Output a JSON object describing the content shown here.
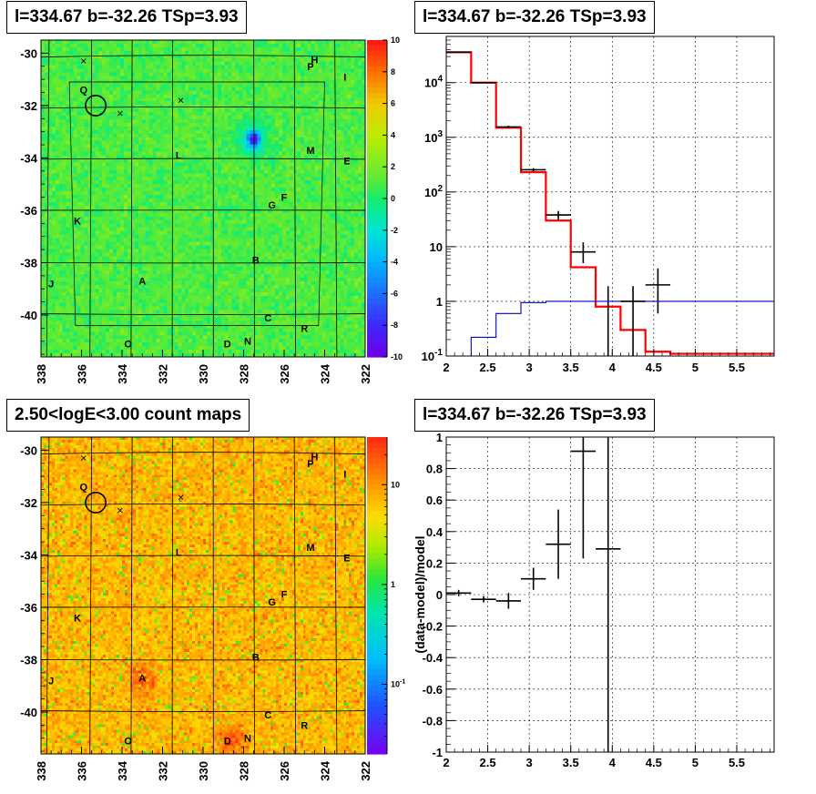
{
  "titles": {
    "tl": "l=334.67 b=-32.26 TSp=3.93",
    "tr": "l=334.67 b=-32.26 TSp=3.93",
    "bl": "2.50<logE<3.00 count maps",
    "br": "l=334.67 b=-32.26 TSp=3.93"
  },
  "colors": {
    "data": "#000000",
    "model": "#ff0000",
    "background": "#0000cc",
    "grid": "#000000"
  },
  "chart_data": [
    {
      "id": "residual-map",
      "type": "heatmap",
      "title": "l=334.67 b=-32.26 TSp=3.93",
      "x_ticks": [
        "338",
        "336",
        "334",
        "332",
        "330",
        "328",
        "326",
        "324",
        "322"
      ],
      "y_ticks": [
        "-30",
        "-32",
        "-34",
        "-36",
        "-38",
        "-40"
      ],
      "xlim": [
        338,
        322
      ],
      "ylim": [
        -41.6,
        -29.5
      ],
      "zlim": [
        -10,
        10
      ],
      "colorbar_ticks": [
        "10",
        "8",
        "6",
        "4",
        "2",
        "0",
        "-2",
        "-4",
        "-6",
        "-8",
        "-10"
      ],
      "dominant_value": 1,
      "sources": [
        {
          "label": "P",
          "l": 324.7,
          "b": -30.5
        },
        {
          "label": "H",
          "l": 324.5,
          "b": -30.25
        },
        {
          "label": "I",
          "l": 323.0,
          "b": -30.9
        },
        {
          "label": "Q",
          "l": 335.9,
          "b": -31.4
        },
        {
          "label": "L",
          "l": 331.2,
          "b": -33.9
        },
        {
          "label": "M",
          "l": 324.7,
          "b": -33.7
        },
        {
          "label": "E",
          "l": 322.9,
          "b": -34.1
        },
        {
          "label": "F",
          "l": 326.0,
          "b": -35.5
        },
        {
          "label": "G",
          "l": 326.6,
          "b": -35.8
        },
        {
          "label": "K",
          "l": 336.2,
          "b": -36.4
        },
        {
          "label": "B",
          "l": 327.4,
          "b": -37.9
        },
        {
          "label": "A",
          "l": 333.0,
          "b": -38.7
        },
        {
          "label": "J",
          "l": 337.5,
          "b": -38.8
        },
        {
          "label": "C",
          "l": 326.8,
          "b": -40.1
        },
        {
          "label": "R",
          "l": 325.0,
          "b": -40.5
        },
        {
          "label": "N",
          "l": 327.8,
          "b": -41.0
        },
        {
          "label": "D",
          "l": 328.8,
          "b": -41.1
        },
        {
          "label": "O",
          "l": 333.7,
          "b": -41.1
        }
      ],
      "crosses": [
        {
          "l": 335.9,
          "b": -30.3
        },
        {
          "l": 331.1,
          "b": -31.8
        },
        {
          "l": 334.1,
          "b": -32.3
        }
      ],
      "circle": {
        "l": 335.3,
        "b": -32.0,
        "r_deg": 0.5
      },
      "blue_spot": {
        "l": 327.5,
        "b": -33.3
      }
    },
    {
      "id": "spectrum",
      "type": "line",
      "title": "l=334.67 b=-32.26 TSp=3.93",
      "x_ticks": [
        "2",
        "2.5",
        "3",
        "3.5",
        "4",
        "4.5",
        "5",
        "5.5"
      ],
      "y_ticks": [
        "10^-1",
        "1",
        "10",
        "10^2",
        "10^3",
        "10^4"
      ],
      "xlim": [
        2,
        5.95
      ],
      "ylim": [
        0.1,
        70000
      ],
      "log_y": true,
      "grid": true,
      "series": [
        {
          "type": "step",
          "color": "#ff0000",
          "edges": [
            2.0,
            2.3,
            2.6,
            2.9,
            3.2,
            3.5,
            3.8,
            4.1,
            4.4,
            4.7,
            5.0,
            5.3,
            5.6,
            5.95
          ],
          "values": [
            36000,
            10000,
            1500,
            230,
            30,
            4.2,
            0.8,
            0.3,
            0.12,
            0.11,
            0.11,
            0.11,
            0.11
          ]
        },
        {
          "type": "step",
          "color": "#0000cc",
          "edges": [
            2.0,
            2.3,
            2.6,
            2.9,
            3.2,
            3.5,
            3.8,
            4.1,
            4.4,
            4.7,
            5.0,
            5.3,
            5.6,
            5.95
          ],
          "values": [
            0.05,
            0.22,
            0.6,
            0.95,
            1.0,
            1.0,
            1.0,
            1.0,
            1.0,
            1.0,
            1.0,
            1.0,
            1.0
          ]
        },
        {
          "type": "errorbars",
          "color": "#000000",
          "points": [
            {
              "x": 2.15,
              "y": 36000,
              "xerr": 0.15,
              "ylo": 35600,
              "yhi": 36400
            },
            {
              "x": 2.45,
              "y": 10000,
              "xerr": 0.15,
              "ylo": 9800,
              "yhi": 10200
            },
            {
              "x": 2.75,
              "y": 1550,
              "xerr": 0.15,
              "ylo": 1470,
              "yhi": 1630
            },
            {
              "x": 3.05,
              "y": 255,
              "xerr": 0.15,
              "ylo": 238,
              "yhi": 272
            },
            {
              "x": 3.35,
              "y": 38,
              "xerr": 0.15,
              "ylo": 31,
              "yhi": 45
            },
            {
              "x": 3.65,
              "y": 8,
              "xerr": 0.15,
              "ylo": 5,
              "yhi": 12
            },
            {
              "x": 3.95,
              "y": 1.0,
              "xerr": 0.0,
              "ylo": 0.09,
              "yhi": 1.9
            },
            {
              "x": 4.25,
              "y": 1.0,
              "xerr": 0.15,
              "ylo": 0.09,
              "yhi": 1.9
            },
            {
              "x": 4.55,
              "y": 2.0,
              "xerr": 0.15,
              "ylo": 0.6,
              "yhi": 4.0
            }
          ]
        }
      ]
    },
    {
      "id": "count-map",
      "type": "heatmap",
      "title": "2.50<logE<3.00 count maps",
      "x_ticks": [
        "338",
        "336",
        "334",
        "332",
        "330",
        "328",
        "326",
        "324",
        "322"
      ],
      "y_ticks": [
        "-30",
        "-32",
        "-34",
        "-36",
        "-38",
        "-40"
      ],
      "xlim": [
        338,
        322
      ],
      "ylim": [
        -41.6,
        -29.5
      ],
      "log_z": true,
      "zlim": [
        0.02,
        30
      ],
      "colorbar_ticks": [
        "10",
        "1",
        "10^-1"
      ],
      "sources": [
        {
          "label": "P",
          "l": 324.7,
          "b": -30.5
        },
        {
          "label": "H",
          "l": 324.5,
          "b": -30.25
        },
        {
          "label": "I",
          "l": 323.0,
          "b": -30.9
        },
        {
          "label": "Q",
          "l": 335.9,
          "b": -31.4
        },
        {
          "label": "L",
          "l": 331.2,
          "b": -33.9
        },
        {
          "label": "M",
          "l": 324.7,
          "b": -33.7
        },
        {
          "label": "E",
          "l": 322.9,
          "b": -34.1
        },
        {
          "label": "F",
          "l": 326.0,
          "b": -35.5
        },
        {
          "label": "G",
          "l": 326.6,
          "b": -35.8
        },
        {
          "label": "K",
          "l": 336.2,
          "b": -36.4
        },
        {
          "label": "B",
          "l": 327.4,
          "b": -37.9
        },
        {
          "label": "A",
          "l": 333.0,
          "b": -38.7
        },
        {
          "label": "J",
          "l": 337.5,
          "b": -38.8
        },
        {
          "label": "C",
          "l": 326.8,
          "b": -40.1
        },
        {
          "label": "R",
          "l": 325.0,
          "b": -40.5
        },
        {
          "label": "N",
          "l": 327.8,
          "b": -41.0
        },
        {
          "label": "D",
          "l": 328.8,
          "b": -41.1
        },
        {
          "label": "O",
          "l": 333.7,
          "b": -41.1
        }
      ],
      "crosses": [
        {
          "l": 335.9,
          "b": -30.3
        },
        {
          "l": 331.1,
          "b": -31.8
        },
        {
          "l": 334.1,
          "b": -32.3
        }
      ],
      "circle": {
        "l": 335.3,
        "b": -32.0,
        "r_deg": 0.5
      },
      "hot_spots": [
        {
          "l": 333.0,
          "b": -38.7
        },
        {
          "l": 328.6,
          "b": -41.1
        }
      ]
    },
    {
      "id": "residual",
      "type": "scatter",
      "title": "l=334.67 b=-32.26 TSp=3.93",
      "ylabel": "(data-model)/model",
      "x_ticks": [
        "2",
        "2.5",
        "3",
        "3.5",
        "4",
        "4.5",
        "5",
        "5.5"
      ],
      "y_ticks": [
        "-1",
        "-0.8",
        "-0.6",
        "-0.4",
        "-0.2",
        "0",
        "0.2",
        "0.4",
        "0.6",
        "0.8",
        "1"
      ],
      "xlim": [
        2,
        5.95
      ],
      "ylim": [
        -1,
        1
      ],
      "grid": true,
      "points": [
        {
          "x": 2.15,
          "y": 0.01,
          "xerr": 0.15,
          "ylo": -0.01,
          "yhi": 0.03
        },
        {
          "x": 2.45,
          "y": -0.03,
          "xerr": 0.15,
          "ylo": -0.05,
          "yhi": -0.01
        },
        {
          "x": 2.75,
          "y": -0.04,
          "xerr": 0.15,
          "ylo": -0.09,
          "yhi": 0.01
        },
        {
          "x": 3.05,
          "y": 0.1,
          "xerr": 0.15,
          "ylo": 0.03,
          "yhi": 0.17
        },
        {
          "x": 3.35,
          "y": 0.32,
          "xerr": 0.15,
          "ylo": 0.1,
          "yhi": 0.54
        },
        {
          "x": 3.65,
          "y": 0.91,
          "xerr": 0.15,
          "ylo": 0.23,
          "yhi": 1.5
        },
        {
          "x": 3.95,
          "y": 0.29,
          "xerr": 0.15,
          "ylo": -1.5,
          "yhi": 1.5
        }
      ]
    }
  ]
}
